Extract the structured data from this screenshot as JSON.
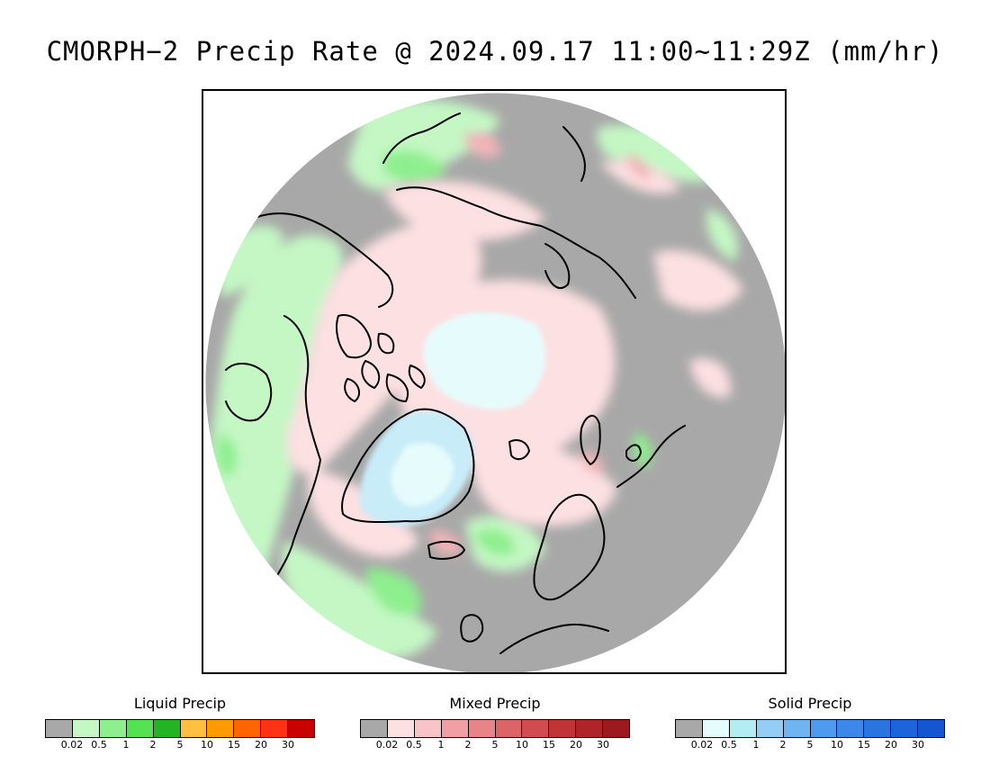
{
  "title": "CMORPH−2 Precip Rate @ 2024.09.17 11:00~11:29Z (mm/hr)",
  "map": {
    "projection": "north-polar-stereographic",
    "colors": {
      "no_precip": "#a8a8a8",
      "liquid_light": "#c4f7c4",
      "liquid_medium": "#8eef8e",
      "mixed_light": "#fde0e2",
      "mixed_medium": "#f3b4b8",
      "solid_light": "#e6fcfc",
      "solid_medium": "#c8ecf8",
      "coastline": "#000000"
    }
  },
  "legends": [
    {
      "title": "Liquid Precip",
      "ticks": [
        "0.02",
        "0.5",
        "1",
        "2",
        "5",
        "10",
        "15",
        "20",
        "30"
      ],
      "colors": [
        "#a8a8a8",
        "#c4f7c4",
        "#8eef8e",
        "#52e252",
        "#22b422",
        "#ffc040",
        "#ff9a00",
        "#ff6400",
        "#ff3214",
        "#c80000"
      ]
    },
    {
      "title": "Mixed Precip",
      "ticks": [
        "0.02",
        "0.5",
        "1",
        "2",
        "5",
        "10",
        "15",
        "20",
        "30"
      ],
      "colors": [
        "#a8a8a8",
        "#fde0e2",
        "#f8c4c8",
        "#f0a0a4",
        "#e88488",
        "#dc6468",
        "#d04c50",
        "#c03438",
        "#ae2428",
        "#9a1a1e"
      ]
    },
    {
      "title": "Solid Precip",
      "ticks": [
        "0.02",
        "0.5",
        "1",
        "2",
        "5",
        "10",
        "15",
        "20",
        "30"
      ],
      "colors": [
        "#a8a8a8",
        "#e4fcfc",
        "#b4ecf4",
        "#94cef6",
        "#70b4f2",
        "#4e9aee",
        "#3c88ea",
        "#2a74e2",
        "#1c64dc",
        "#1456d2"
      ]
    }
  ]
}
